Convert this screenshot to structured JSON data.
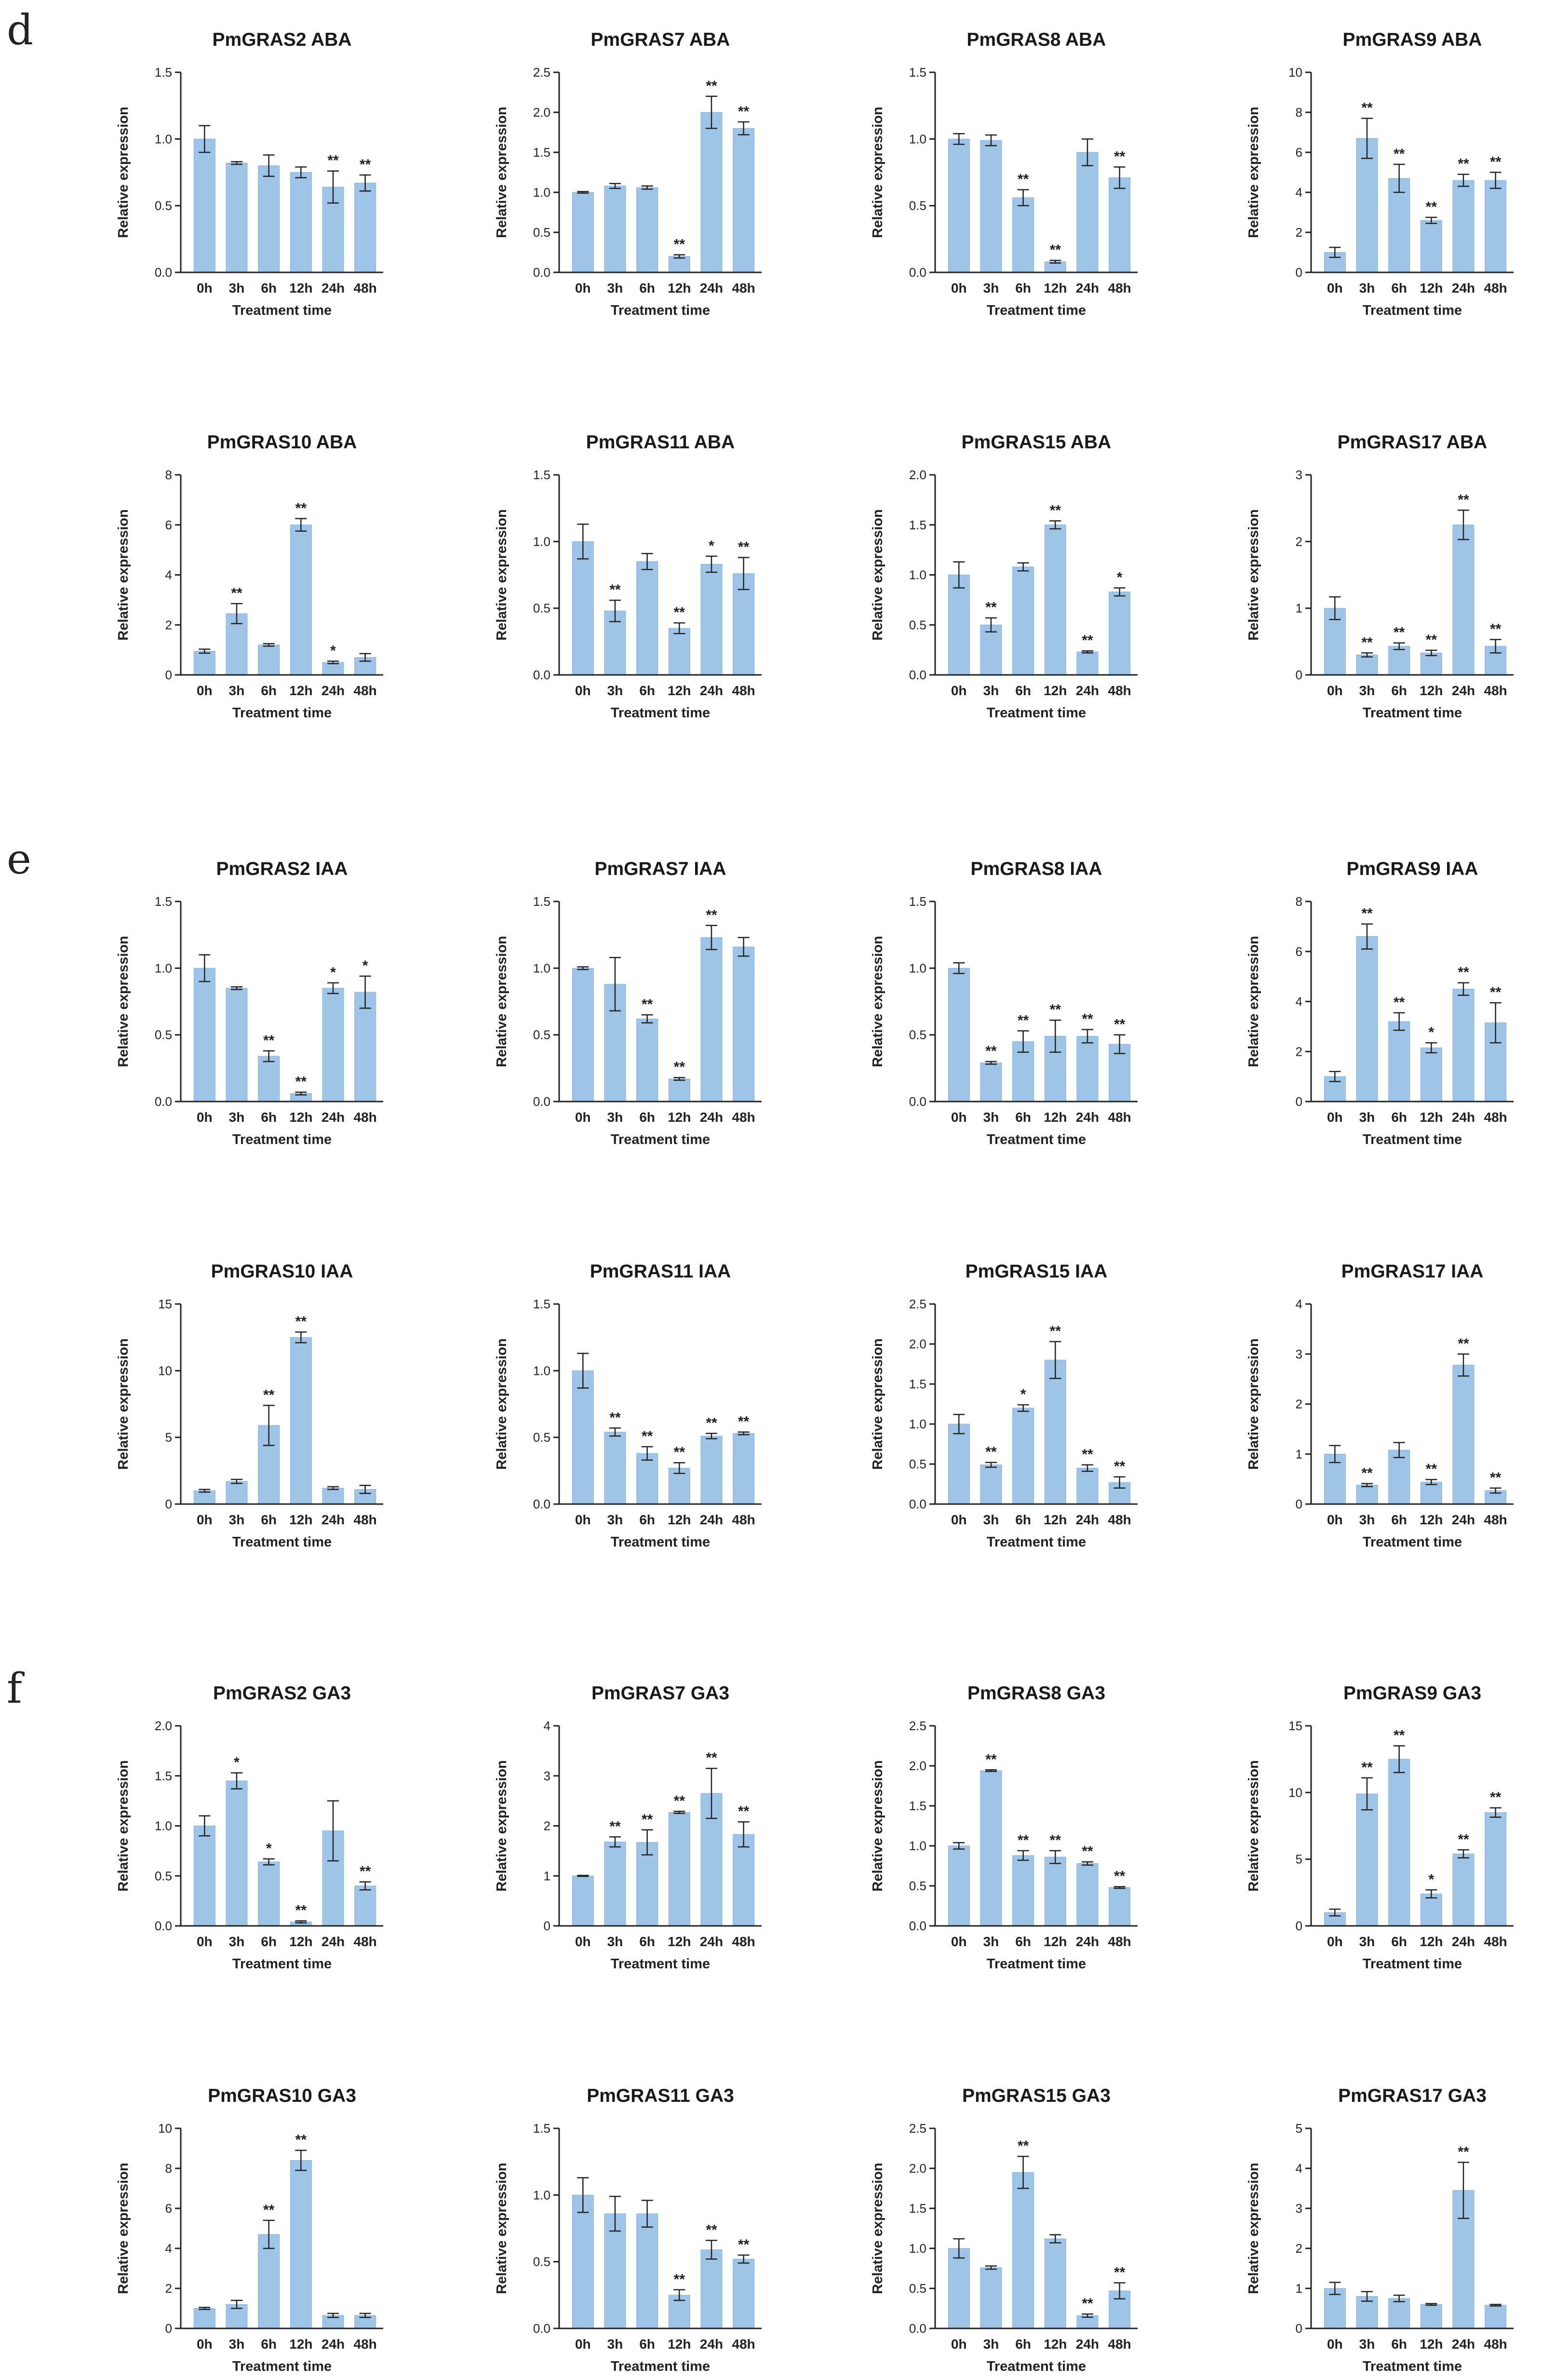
{
  "panel_letters": [
    "d",
    "e",
    "f"
  ],
  "chart_data": [
    {
      "type": "bar",
      "panel": "d",
      "title": "PmGRAS2 ABA",
      "xlabel": "Treatment time",
      "ylabel": "Relative expression",
      "categories": [
        "0h",
        "3h",
        "6h",
        "12h",
        "24h",
        "48h"
      ],
      "values": [
        1.0,
        0.82,
        0.8,
        0.75,
        0.64,
        0.67
      ],
      "errors": [
        0.1,
        0.01,
        0.08,
        0.04,
        0.12,
        0.06
      ],
      "significance": [
        "",
        "",
        "",
        "",
        "**",
        "**"
      ],
      "ylim": [
        0,
        1.5
      ],
      "yticks": [
        "0.0",
        "0.5",
        "1.0",
        "1.5"
      ]
    },
    {
      "type": "bar",
      "panel": "d",
      "title": "PmGRAS7 ABA",
      "xlabel": "Treatment time",
      "ylabel": "Relative expression",
      "categories": [
        "0h",
        "3h",
        "6h",
        "12h",
        "24h",
        "48h"
      ],
      "values": [
        1.0,
        1.08,
        1.06,
        0.2,
        2.0,
        1.8
      ],
      "errors": [
        0.01,
        0.03,
        0.02,
        0.02,
        0.2,
        0.08
      ],
      "significance": [
        "",
        "",
        "",
        "**",
        "**",
        "**"
      ],
      "ylim": [
        0,
        2.5
      ],
      "yticks": [
        "0.0",
        "0.5",
        "1.0",
        "1.5",
        "2.0",
        "2.5"
      ]
    },
    {
      "type": "bar",
      "panel": "d",
      "title": "PmGRAS8 ABA",
      "xlabel": "Treatment time",
      "ylabel": "Relative expression",
      "categories": [
        "0h",
        "3h",
        "6h",
        "12h",
        "24h",
        "48h"
      ],
      "values": [
        1.0,
        0.99,
        0.56,
        0.08,
        0.9,
        0.71
      ],
      "errors": [
        0.04,
        0.04,
        0.06,
        0.01,
        0.1,
        0.08
      ],
      "significance": [
        "",
        "",
        "**",
        "**",
        "",
        "**"
      ],
      "ylim": [
        0,
        1.5
      ],
      "yticks": [
        "0.0",
        "0.5",
        "1.0",
        "1.5"
      ]
    },
    {
      "type": "bar",
      "panel": "d",
      "title": "PmGRAS9 ABA",
      "xlabel": "Treatment time",
      "ylabel": "Relative expression",
      "categories": [
        "0h",
        "3h",
        "6h",
        "12h",
        "24h",
        "48h"
      ],
      "values": [
        1.0,
        6.7,
        4.7,
        2.6,
        4.6,
        4.6
      ],
      "errors": [
        0.25,
        1.0,
        0.7,
        0.15,
        0.3,
        0.4
      ],
      "significance": [
        "",
        "**",
        "**",
        "**",
        "**",
        "**"
      ],
      "ylim": [
        0,
        10
      ],
      "yticks": [
        "0",
        "2",
        "4",
        "6",
        "8",
        "10"
      ]
    },
    {
      "type": "bar",
      "panel": "d",
      "title": "PmGRAS10 ABA",
      "xlabel": "Treatment time",
      "ylabel": "Relative expression",
      "categories": [
        "0h",
        "3h",
        "6h",
        "12h",
        "24h",
        "48h"
      ],
      "values": [
        0.95,
        2.45,
        1.2,
        6.0,
        0.5,
        0.7
      ],
      "errors": [
        0.08,
        0.4,
        0.05,
        0.25,
        0.05,
        0.15
      ],
      "significance": [
        "",
        "**",
        "",
        "**",
        "*",
        ""
      ],
      "ylim": [
        0,
        8
      ],
      "yticks": [
        "0",
        "2",
        "4",
        "6",
        "8"
      ]
    },
    {
      "type": "bar",
      "panel": "d",
      "title": "PmGRAS11 ABA",
      "xlabel": "Treatment time",
      "ylabel": "Relative expression",
      "categories": [
        "0h",
        "3h",
        "6h",
        "12h",
        "24h",
        "48h"
      ],
      "values": [
        1.0,
        0.48,
        0.85,
        0.35,
        0.83,
        0.76
      ],
      "errors": [
        0.13,
        0.08,
        0.06,
        0.04,
        0.06,
        0.12
      ],
      "significance": [
        "",
        "**",
        "",
        "**",
        "*",
        "**"
      ],
      "ylim": [
        0,
        1.5
      ],
      "yticks": [
        "0.0",
        "0.5",
        "1.0",
        "1.5"
      ]
    },
    {
      "type": "bar",
      "panel": "d",
      "title": "PmGRAS15 ABA",
      "xlabel": "Treatment time",
      "ylabel": "Relative expression",
      "categories": [
        "0h",
        "3h",
        "6h",
        "12h",
        "24h",
        "48h"
      ],
      "values": [
        1.0,
        0.5,
        1.08,
        1.5,
        0.23,
        0.83
      ],
      "errors": [
        0.13,
        0.07,
        0.04,
        0.04,
        0.01,
        0.04
      ],
      "significance": [
        "",
        "**",
        "",
        "**",
        "**",
        "*"
      ],
      "ylim": [
        0,
        2.0
      ],
      "yticks": [
        "0.0",
        "0.5",
        "1.0",
        "1.5",
        "2.0"
      ]
    },
    {
      "type": "bar",
      "panel": "d",
      "title": "PmGRAS17 ABA",
      "xlabel": "Treatment time",
      "ylabel": "Relative expression",
      "categories": [
        "0h",
        "3h",
        "6h",
        "12h",
        "24h",
        "48h"
      ],
      "values": [
        1.0,
        0.3,
        0.43,
        0.33,
        2.25,
        0.43
      ],
      "errors": [
        0.17,
        0.03,
        0.05,
        0.04,
        0.22,
        0.1
      ],
      "significance": [
        "",
        "**",
        "**",
        "**",
        "**",
        "**"
      ],
      "ylim": [
        0,
        3
      ],
      "yticks": [
        "0",
        "1",
        "2",
        "3"
      ]
    },
    {
      "type": "bar",
      "panel": "e",
      "title": "PmGRAS2 IAA",
      "xlabel": "Treatment time",
      "ylabel": "Relative expression",
      "categories": [
        "0h",
        "3h",
        "6h",
        "12h",
        "24h",
        "48h"
      ],
      "values": [
        1.0,
        0.85,
        0.34,
        0.06,
        0.85,
        0.82
      ],
      "errors": [
        0.1,
        0.01,
        0.04,
        0.01,
        0.04,
        0.12
      ],
      "significance": [
        "",
        "",
        "**",
        "**",
        "*",
        "*"
      ],
      "ylim": [
        0,
        1.5
      ],
      "yticks": [
        "0.0",
        "0.5",
        "1.0",
        "1.5"
      ]
    },
    {
      "type": "bar",
      "panel": "e",
      "title": "PmGRAS7 IAA",
      "xlabel": "Treatment time",
      "ylabel": "Relative expression",
      "categories": [
        "0h",
        "3h",
        "6h",
        "12h",
        "24h",
        "48h"
      ],
      "values": [
        1.0,
        0.88,
        0.62,
        0.17,
        1.23,
        1.16
      ],
      "errors": [
        0.01,
        0.2,
        0.03,
        0.01,
        0.09,
        0.07
      ],
      "significance": [
        "",
        "",
        "**",
        "**",
        "**",
        ""
      ],
      "ylim": [
        0,
        1.5
      ],
      "yticks": [
        "0.0",
        "0.5",
        "1.0",
        "1.5"
      ]
    },
    {
      "type": "bar",
      "panel": "e",
      "title": "PmGRAS8 IAA",
      "xlabel": "Treatment time",
      "ylabel": "Relative expression",
      "categories": [
        "0h",
        "3h",
        "6h",
        "12h",
        "24h",
        "48h"
      ],
      "values": [
        1.0,
        0.29,
        0.45,
        0.49,
        0.49,
        0.43
      ],
      "errors": [
        0.04,
        0.01,
        0.08,
        0.12,
        0.05,
        0.07
      ],
      "significance": [
        "",
        "**",
        "**",
        "**",
        "**",
        "**"
      ],
      "ylim": [
        0,
        1.5
      ],
      "yticks": [
        "0.0",
        "0.5",
        "1.0",
        "1.5"
      ]
    },
    {
      "type": "bar",
      "panel": "e",
      "title": "PmGRAS9 IAA",
      "xlabel": "Treatment time",
      "ylabel": "Relative expression",
      "categories": [
        "0h",
        "3h",
        "6h",
        "12h",
        "24h",
        "48h"
      ],
      "values": [
        1.0,
        6.6,
        3.2,
        2.15,
        4.5,
        3.15
      ],
      "errors": [
        0.2,
        0.5,
        0.35,
        0.2,
        0.25,
        0.8
      ],
      "significance": [
        "",
        "**",
        "**",
        "*",
        "**",
        "**"
      ],
      "ylim": [
        0,
        8
      ],
      "yticks": [
        "0",
        "2",
        "4",
        "6",
        "8"
      ]
    },
    {
      "type": "bar",
      "panel": "e",
      "title": "PmGRAS10 IAA",
      "xlabel": "Treatment time",
      "ylabel": "Relative expression",
      "categories": [
        "0h",
        "3h",
        "6h",
        "12h",
        "24h",
        "48h"
      ],
      "values": [
        1.0,
        1.7,
        5.9,
        12.5,
        1.2,
        1.1
      ],
      "errors": [
        0.1,
        0.15,
        1.5,
        0.4,
        0.1,
        0.3
      ],
      "significance": [
        "",
        "",
        "**",
        "**",
        "",
        ""
      ],
      "ylim": [
        0,
        15
      ],
      "yticks": [
        "0",
        "5",
        "10",
        "15"
      ]
    },
    {
      "type": "bar",
      "panel": "e",
      "title": "PmGRAS11 IAA",
      "xlabel": "Treatment time",
      "ylabel": "Relative expression",
      "categories": [
        "0h",
        "3h",
        "6h",
        "12h",
        "24h",
        "48h"
      ],
      "values": [
        1.0,
        0.54,
        0.38,
        0.27,
        0.51,
        0.53
      ],
      "errors": [
        0.13,
        0.03,
        0.05,
        0.04,
        0.02,
        0.01
      ],
      "significance": [
        "",
        "**",
        "**",
        "**",
        "**",
        "**"
      ],
      "ylim": [
        0,
        1.5
      ],
      "yticks": [
        "0.0",
        "0.5",
        "1.0",
        "1.5"
      ]
    },
    {
      "type": "bar",
      "panel": "e",
      "title": "PmGRAS15 IAA",
      "xlabel": "Treatment time",
      "ylabel": "Relative expression",
      "categories": [
        "0h",
        "3h",
        "6h",
        "12h",
        "24h",
        "48h"
      ],
      "values": [
        1.0,
        0.49,
        1.2,
        1.8,
        0.45,
        0.27
      ],
      "errors": [
        0.12,
        0.03,
        0.04,
        0.23,
        0.04,
        0.07
      ],
      "significance": [
        "",
        "**",
        "*",
        "**",
        "**",
        "**"
      ],
      "ylim": [
        0,
        2.5
      ],
      "yticks": [
        "0.0",
        "0.5",
        "1.0",
        "1.5",
        "2.0",
        "2.5"
      ]
    },
    {
      "type": "bar",
      "panel": "e",
      "title": "PmGRAS17 IAA",
      "xlabel": "Treatment time",
      "ylabel": "Relative expression",
      "categories": [
        "0h",
        "3h",
        "6h",
        "12h",
        "24h",
        "48h"
      ],
      "values": [
        1.0,
        0.38,
        1.08,
        0.44,
        2.78,
        0.27
      ],
      "errors": [
        0.17,
        0.03,
        0.15,
        0.05,
        0.22,
        0.05
      ],
      "significance": [
        "",
        "**",
        "",
        "**",
        "**",
        "**"
      ],
      "ylim": [
        0,
        4
      ],
      "yticks": [
        "0",
        "1",
        "2",
        "3",
        "4"
      ]
    },
    {
      "type": "bar",
      "panel": "f",
      "title": "PmGRAS2 GA3",
      "xlabel": "Treatment time",
      "ylabel": "Relative expression",
      "categories": [
        "0h",
        "3h",
        "6h",
        "12h",
        "24h",
        "48h"
      ],
      "values": [
        1.0,
        1.45,
        0.64,
        0.04,
        0.95,
        0.4
      ],
      "errors": [
        0.1,
        0.08,
        0.03,
        0.01,
        0.3,
        0.04
      ],
      "significance": [
        "",
        "*",
        "*",
        "**",
        "",
        "**"
      ],
      "ylim": [
        0,
        2.0
      ],
      "yticks": [
        "0.0",
        "0.5",
        "1.0",
        "1.5",
        "2.0"
      ]
    },
    {
      "type": "bar",
      "panel": "f",
      "title": "PmGRAS7 GA3",
      "xlabel": "Treatment time",
      "ylabel": "Relative expression",
      "categories": [
        "0h",
        "3h",
        "6h",
        "12h",
        "24h",
        "48h"
      ],
      "values": [
        1.0,
        1.68,
        1.67,
        2.27,
        2.65,
        1.83
      ],
      "errors": [
        0.01,
        0.1,
        0.25,
        0.02,
        0.5,
        0.25
      ],
      "significance": [
        "",
        "**",
        "**",
        "**",
        "**",
        "**"
      ],
      "ylim": [
        0,
        4
      ],
      "yticks": [
        "0",
        "1",
        "2",
        "3",
        "4"
      ]
    },
    {
      "type": "bar",
      "panel": "f",
      "title": "PmGRAS8 GA3",
      "xlabel": "Treatment time",
      "ylabel": "Relative expression",
      "categories": [
        "0h",
        "3h",
        "6h",
        "12h",
        "24h",
        "48h"
      ],
      "values": [
        1.0,
        1.94,
        0.88,
        0.86,
        0.78,
        0.48
      ],
      "errors": [
        0.04,
        0.01,
        0.06,
        0.08,
        0.02,
        0.01
      ],
      "significance": [
        "",
        "**",
        "**",
        "**",
        "**",
        "**"
      ],
      "ylim": [
        0,
        2.5
      ],
      "yticks": [
        "0.0",
        "0.5",
        "1.0",
        "1.5",
        "2.0",
        "2.5"
      ]
    },
    {
      "type": "bar",
      "panel": "f",
      "title": "PmGRAS9 GA3",
      "xlabel": "Treatment time",
      "ylabel": "Relative expression",
      "categories": [
        "0h",
        "3h",
        "6h",
        "12h",
        "24h",
        "48h"
      ],
      "values": [
        1.0,
        9.9,
        12.5,
        2.4,
        5.4,
        8.5
      ],
      "errors": [
        0.25,
        1.2,
        1.0,
        0.3,
        0.3,
        0.35
      ],
      "significance": [
        "",
        "**",
        "**",
        "*",
        "**",
        "**"
      ],
      "ylim": [
        0,
        15
      ],
      "yticks": [
        "0",
        "5",
        "10",
        "15"
      ]
    },
    {
      "type": "bar",
      "panel": "f",
      "title": "PmGRAS10 GA3",
      "xlabel": "Treatment time",
      "ylabel": "Relative expression",
      "categories": [
        "0h",
        "3h",
        "6h",
        "12h",
        "24h",
        "48h"
      ],
      "values": [
        1.0,
        1.2,
        4.7,
        8.4,
        0.65,
        0.65
      ],
      "errors": [
        0.05,
        0.2,
        0.7,
        0.5,
        0.1,
        0.1
      ],
      "significance": [
        "",
        "",
        "**",
        "**",
        "",
        ""
      ],
      "ylim": [
        0,
        10
      ],
      "yticks": [
        "0",
        "2",
        "4",
        "6",
        "8",
        "10"
      ]
    },
    {
      "type": "bar",
      "panel": "f",
      "title": "PmGRAS11 GA3",
      "xlabel": "Treatment time",
      "ylabel": "Relative expression",
      "categories": [
        "0h",
        "3h",
        "6h",
        "12h",
        "24h",
        "48h"
      ],
      "values": [
        1.0,
        0.86,
        0.86,
        0.25,
        0.59,
        0.52
      ],
      "errors": [
        0.13,
        0.13,
        0.1,
        0.04,
        0.07,
        0.03
      ],
      "significance": [
        "",
        "",
        "",
        "**",
        "**",
        "**"
      ],
      "ylim": [
        0,
        1.5
      ],
      "yticks": [
        "0.0",
        "0.5",
        "1.0",
        "1.5"
      ]
    },
    {
      "type": "bar",
      "panel": "f",
      "title": "PmGRAS15 GA3",
      "xlabel": "Treatment time",
      "ylabel": "Relative expression",
      "categories": [
        "0h",
        "3h",
        "6h",
        "12h",
        "24h",
        "48h"
      ],
      "values": [
        1.0,
        0.76,
        1.95,
        1.12,
        0.16,
        0.47
      ],
      "errors": [
        0.12,
        0.02,
        0.2,
        0.05,
        0.02,
        0.1
      ],
      "significance": [
        "",
        "",
        "**",
        "",
        "**",
        "**"
      ],
      "ylim": [
        0,
        2.5
      ],
      "yticks": [
        "0.0",
        "0.5",
        "1.0",
        "1.5",
        "2.0",
        "2.5"
      ]
    },
    {
      "type": "bar",
      "panel": "f",
      "title": "PmGRAS17 GA3",
      "xlabel": "Treatment time",
      "ylabel": "Relative expression",
      "categories": [
        "0h",
        "3h",
        "6h",
        "12h",
        "24h",
        "48h"
      ],
      "values": [
        1.0,
        0.8,
        0.75,
        0.6,
        3.45,
        0.58
      ],
      "errors": [
        0.15,
        0.12,
        0.08,
        0.02,
        0.7,
        0.02
      ],
      "significance": [
        "",
        "",
        "",
        "",
        "**",
        ""
      ],
      "ylim": [
        0,
        5
      ],
      "yticks": [
        "0",
        "1",
        "2",
        "3",
        "4",
        "5"
      ]
    }
  ]
}
